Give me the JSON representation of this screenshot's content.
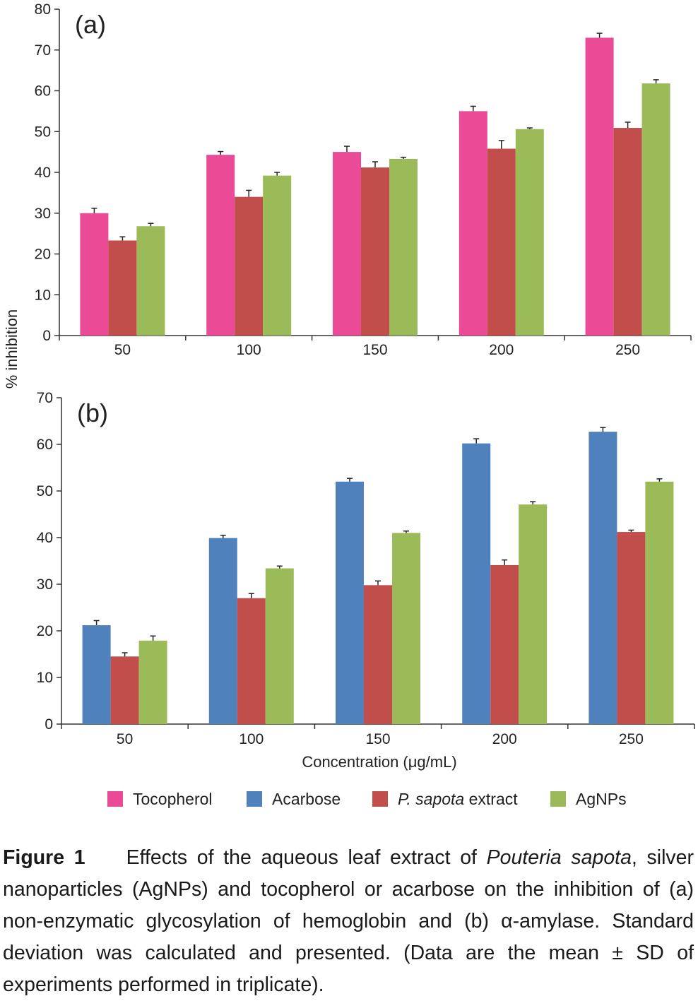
{
  "chart_data": [
    {
      "type": "bar",
      "panel": "(a)",
      "ylabel": "% inhibition",
      "xlabel": "",
      "ylim": [
        0,
        80
      ],
      "yticks": [
        0,
        10,
        20,
        30,
        40,
        50,
        60,
        70,
        80
      ],
      "categories": [
        "50",
        "100",
        "150",
        "200",
        "250"
      ],
      "series": [
        {
          "name": "Tocopherol",
          "color": "#ea4a96",
          "values": [
            30.0,
            44.3,
            45.0,
            55.0,
            73.0
          ],
          "errors": [
            1.2,
            0.8,
            1.4,
            1.2,
            1.1
          ]
        },
        {
          "name": "P. sapota extract",
          "color": "#c24e4c",
          "values": [
            23.3,
            34.0,
            41.2,
            45.8,
            50.9
          ],
          "errors": [
            0.9,
            1.6,
            1.4,
            2.0,
            1.4
          ]
        },
        {
          "name": "AgNPs",
          "color": "#9bbb59",
          "values": [
            26.8,
            39.2,
            43.3,
            50.6,
            61.8
          ],
          "errors": [
            0.7,
            0.8,
            0.4,
            0.3,
            0.9
          ]
        }
      ]
    },
    {
      "type": "bar",
      "panel": "(b)",
      "ylabel": "% inhibition",
      "xlabel": "Concentration (μg/mL)",
      "ylim": [
        0,
        70
      ],
      "yticks": [
        0,
        10,
        20,
        30,
        40,
        50,
        60,
        70
      ],
      "categories": [
        "50",
        "100",
        "150",
        "200",
        "250"
      ],
      "series": [
        {
          "name": "Acarbose",
          "color": "#4f81bd",
          "values": [
            21.2,
            39.9,
            52.0,
            60.2,
            62.7
          ],
          "errors": [
            1.0,
            0.6,
            0.7,
            1.0,
            0.9
          ]
        },
        {
          "name": "P. sapota extract",
          "color": "#c24e4c",
          "values": [
            14.5,
            27.0,
            29.8,
            34.1,
            41.2
          ],
          "errors": [
            0.8,
            1.0,
            0.9,
            1.1,
            0.4
          ]
        },
        {
          "name": "AgNPs",
          "color": "#9bbb59",
          "values": [
            17.9,
            33.4,
            41.0,
            47.1,
            52.0
          ],
          "errors": [
            1.0,
            0.5,
            0.4,
            0.6,
            0.6
          ]
        }
      ]
    }
  ],
  "legend": [
    {
      "name": "Tocopherol",
      "color": "#ea4a96",
      "italic_part": "",
      "plain_part": "Tocopherol"
    },
    {
      "name": "Acarbose",
      "color": "#4f81bd",
      "italic_part": "",
      "plain_part": "Acarbose"
    },
    {
      "name": "P. sapota extract",
      "color": "#c24e4c",
      "italic_part": "P. sapota",
      "plain_part": " extract"
    },
    {
      "name": "AgNPs",
      "color": "#9bbb59",
      "italic_part": "",
      "plain_part": "AgNPs"
    }
  ],
  "caption": {
    "label": "Figure 1",
    "text_1": "Effects of the aqueous leaf extract of ",
    "species": "Pouteria sapota",
    "text_2": ", silver nanoparticles (AgNPs) and tocopherol or acarbose on the inhibition of (a) non-enzymatic glycosylation of hemoglobin and (b) α-amylase. Standard deviation was calculated and presented. (Data are the mean ± SD of experiments performed in triplicate)."
  }
}
